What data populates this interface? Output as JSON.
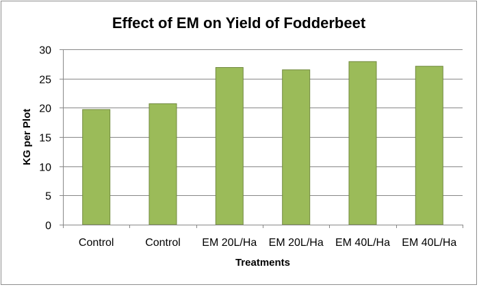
{
  "chart_data": {
    "type": "bar",
    "title": "Effect of EM on Yield of Fodderbeet",
    "xlabel": "Treatments",
    "ylabel": "KG per Plot",
    "categories": [
      "Control",
      "Control",
      "EM 20L/Ha",
      "EM 20L/Ha",
      "EM 40L/Ha",
      "EM 40L/Ha"
    ],
    "values": [
      19.7,
      20.7,
      26.9,
      26.5,
      27.9,
      27.1
    ],
    "ylim": [
      0,
      30
    ],
    "yticks": [
      0,
      5,
      10,
      15,
      20,
      25,
      30
    ],
    "grid": true,
    "legend": "none",
    "colors": {
      "bar_fill": "#9bbb59",
      "bar_stroke": "#71893f",
      "grid": "#868686",
      "axis": "#868686"
    }
  }
}
